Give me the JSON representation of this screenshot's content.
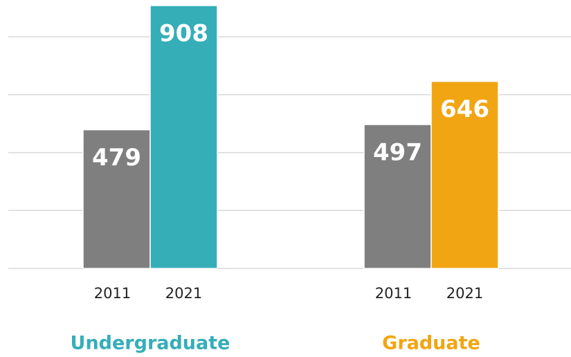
{
  "chart_data": {
    "type": "bar",
    "categories": [
      "Undergraduate",
      "Graduate"
    ],
    "category_colors": [
      "#35aeb8",
      "#f2a512"
    ],
    "series": [
      {
        "name": "2011",
        "colors": [
          "#7f7f7f",
          "#7f7f7f"
        ],
        "values": [
          479,
          497
        ]
      },
      {
        "name": "2021",
        "colors": [
          "#35aeb8",
          "#f2a512"
        ],
        "values": [
          908,
          646
        ]
      }
    ],
    "ylim": [
      0,
      920
    ],
    "yticks": [
      0,
      200,
      400,
      600,
      800
    ],
    "grid": true
  }
}
